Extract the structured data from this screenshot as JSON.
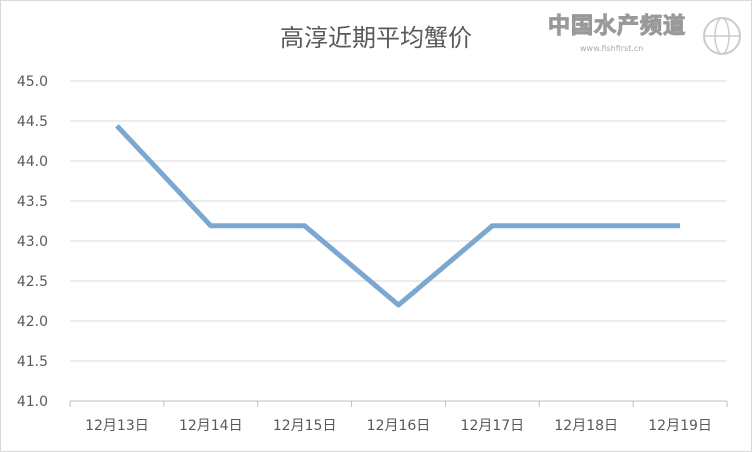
{
  "chart_data": {
    "type": "line",
    "title": "高淳近期平均蟹价",
    "categories": [
      "12月13日",
      "12月14日",
      "12月15日",
      "12月16日",
      "12月17日",
      "12月18日",
      "12月19日"
    ],
    "values": [
      44.44,
      43.19,
      43.19,
      42.2,
      43.19,
      43.19,
      43.19
    ],
    "ylim": [
      41.0,
      45.0
    ],
    "yticks": [
      "41.0",
      "41.5",
      "42.0",
      "42.5",
      "43.0",
      "43.5",
      "44.0",
      "44.5",
      "45.0"
    ],
    "grid": true,
    "legend": "none",
    "line_color": "#7ba7d0",
    "xlabel": "",
    "ylabel": ""
  },
  "watermark": {
    "text": "中国水产频道",
    "url": "www.fishfirst.cn"
  }
}
